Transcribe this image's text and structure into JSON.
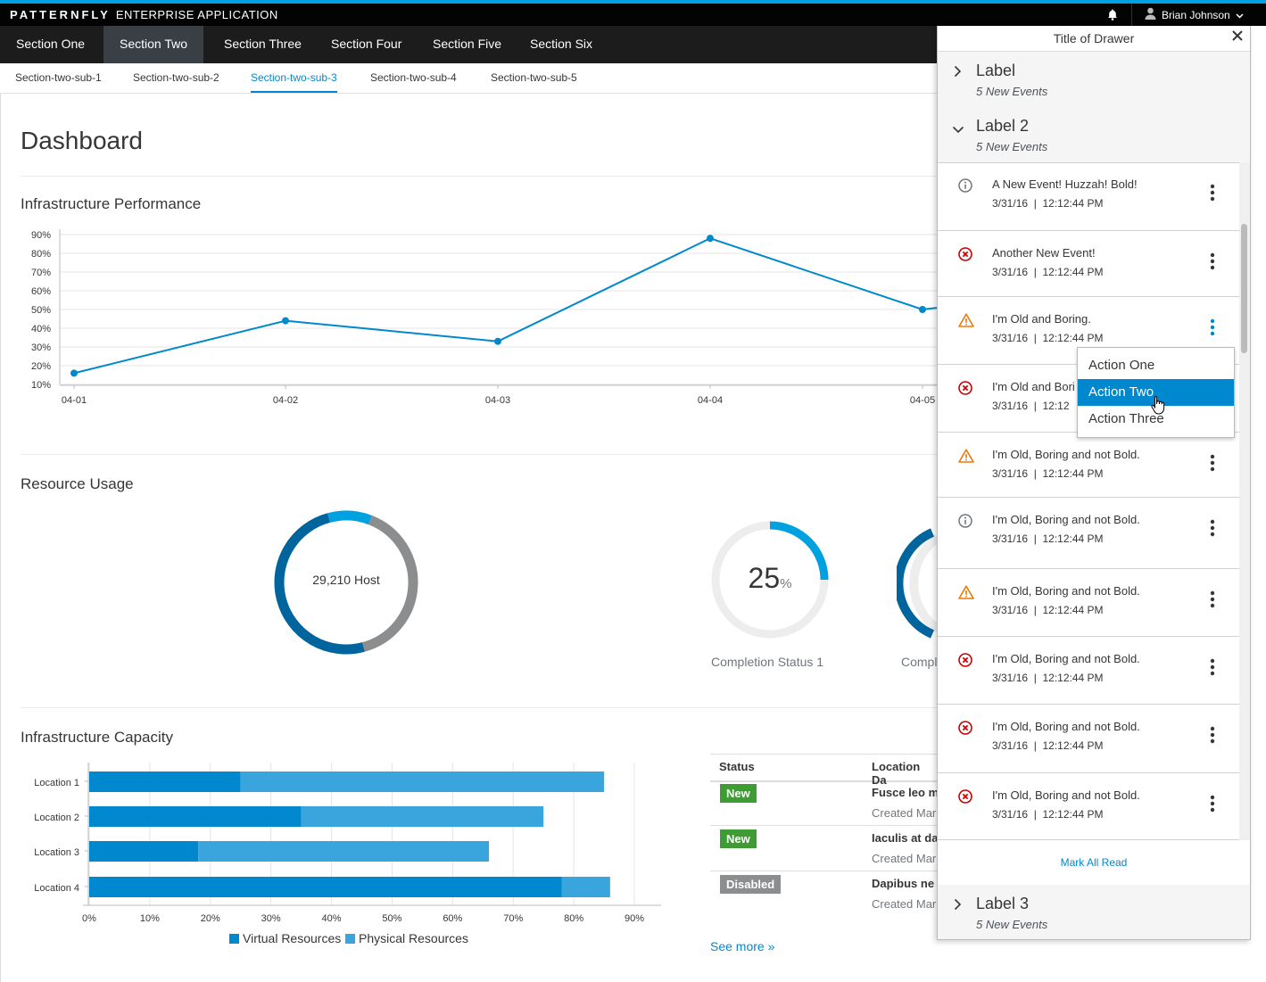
{
  "masthead": {
    "brand_bold": "PATTERNFLY",
    "brand_rest": "ENTERPRISE APPLICATION",
    "user_name": "Brian Johnson",
    "icons": {
      "notification": "bell-icon",
      "user": "user-icon",
      "caret": "chevron-down-icon"
    }
  },
  "primary_nav": {
    "items": [
      "Section One",
      "Section Two",
      "Section Three",
      "Section Four",
      "Section Five",
      "Section Six"
    ],
    "active_index": 1
  },
  "secondary_nav": {
    "items": [
      "Section-two-sub-1",
      "Section-two-sub-2",
      "Section-two-sub-3",
      "Section-two-sub-4",
      "Section-two-sub-5"
    ],
    "active_index": 2
  },
  "dashboard": {
    "title": "Dashboard",
    "perf_title": "Infrastructure Performance",
    "usage_title": "Resource Usage",
    "capacity_title": "Infrastructure Capacity",
    "donut_center": "29,210 Host",
    "completion1_value": "25",
    "completion1_unit": "%",
    "completion1_label": "Completion Status 1",
    "completion2_label_partial": "Compl",
    "see_more": "See more »"
  },
  "chart_data": [
    {
      "type": "line",
      "x": [
        "04-01",
        "04-02",
        "04-03",
        "04-04",
        "04-05"
      ],
      "series": [
        {
          "values": [
            16,
            44,
            33,
            88,
            50
          ]
        }
      ],
      "yticks": [
        "10%",
        "20%",
        "30%",
        "40%",
        "50%",
        "60%",
        "70%",
        "80%",
        "90%"
      ],
      "ylim": [
        10,
        90
      ],
      "color": "#0088ce",
      "grid": true
    },
    {
      "type": "pie",
      "slices": [
        {
          "value": 10,
          "color": "#00a1e0"
        },
        {
          "value": 40,
          "color": "#8b8d8f"
        },
        {
          "value": 50,
          "color": "#00659c"
        }
      ],
      "center_label": "29,210 Host"
    },
    {
      "type": "pie",
      "slices": [
        {
          "value": 25,
          "color": "#00a1e0"
        },
        {
          "value": 75,
          "color": "#ededed"
        }
      ],
      "center_label": "25%"
    },
    {
      "type": "bar",
      "orientation": "horizontal",
      "stacked": true,
      "categories": [
        "Location 1",
        "Location 2",
        "Location 3",
        "Location 4"
      ],
      "series": [
        {
          "name": "Virtual Resources",
          "values": [
            25,
            35,
            18,
            78
          ],
          "color": "#0088ce"
        },
        {
          "name": "Physical Resources",
          "values": [
            60,
            40,
            48,
            8
          ],
          "color": "#39a5dc"
        }
      ],
      "xticks": [
        "0%",
        "10%",
        "20%",
        "30%",
        "40%",
        "50%",
        "60%",
        "70%",
        "80%",
        "90%"
      ],
      "xlim": [
        0,
        90
      ],
      "legend": "bottom"
    }
  ],
  "table": {
    "headers": [
      "Status",
      "Location Da"
    ],
    "rows": [
      {
        "status": "New",
        "status_type": "new",
        "name": "Fusce leo m",
        "sub": "Created Mar"
      },
      {
        "status": "New",
        "status_type": "new",
        "name": "Iaculis at da",
        "sub": "Created Mar"
      },
      {
        "status": "Disabled",
        "status_type": "disabled",
        "name": "Dapibus ne",
        "sub": "Created Mar"
      }
    ]
  },
  "drawer": {
    "title": "Title of Drawer",
    "groups": [
      {
        "label": "Label",
        "sub": "5 New Events",
        "expanded": false
      },
      {
        "label": "Label 2",
        "sub": "5 New Events",
        "expanded": true
      },
      {
        "label": "Label 3",
        "sub": "5 New Events",
        "expanded": false
      }
    ],
    "events": [
      {
        "icon": "info-icon",
        "title": "A New Event! Huzzah! Bold!",
        "date": "3/31/16  |  12:12:44 PM"
      },
      {
        "icon": "error-icon",
        "title": "Another New Event!",
        "date": "3/31/16  |  12:12:44 PM"
      },
      {
        "icon": "warning-icon",
        "title": "I'm Old and Boring.",
        "date": "3/31/16  |  12:12:44 PM"
      },
      {
        "icon": "error-icon",
        "title": "I'm Old and Bori",
        "date": "3/31/16  |  12:12"
      },
      {
        "icon": "warning-icon",
        "title": "I'm Old, Boring and not Bold.",
        "date": "3/31/16  |  12:12:44 PM"
      },
      {
        "icon": "info-icon",
        "title": "I'm Old, Boring and not Bold.",
        "date": "3/31/16  |  12:12:44 PM"
      },
      {
        "icon": "warning-icon",
        "title": "I'm Old, Boring and not Bold.",
        "date": "3/31/16  |  12:12:44 PM"
      },
      {
        "icon": "error-icon",
        "title": "I'm Old, Boring and not Bold.",
        "date": "3/31/16  |  12:12:44 PM"
      },
      {
        "icon": "error-icon",
        "title": "I'm Old, Boring and not Bold.",
        "date": "3/31/16  |  12:12:44 PM"
      },
      {
        "icon": "error-icon",
        "title": "I'm Old, Boring and not Bold.",
        "date": "3/31/16  |  12:12:44 PM"
      }
    ],
    "mark_all": "Mark All Read",
    "dropdown": {
      "items": [
        "Action One",
        "Action Two",
        "Action Three"
      ],
      "active_index": 1
    }
  },
  "colors": {
    "accent": "#00a1e0",
    "link": "#0088ce",
    "error": "#cc0000",
    "warning": "#ec7a08",
    "info": "#72767b"
  }
}
